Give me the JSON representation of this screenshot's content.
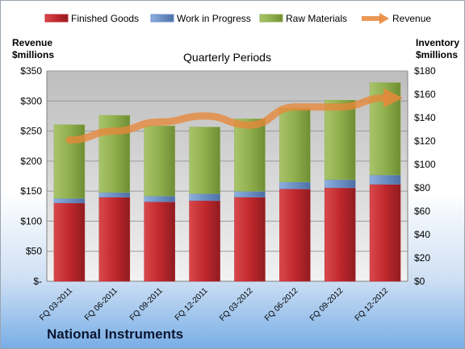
{
  "company": "National Instruments",
  "chart_data": {
    "type": "bar",
    "stacked": true,
    "title": "Quarterly Periods",
    "ylabel_left": "Revenue\n$millions",
    "ylabel_right": "Inventory\n$millions",
    "categories": [
      "FQ 03-2011",
      "FQ 06-2011",
      "FQ 09-2011",
      "FQ 12-2011",
      "FQ 03-2012",
      "FQ 06-2012",
      "FQ 09-2012",
      "FQ 12-2012"
    ],
    "left_axis": {
      "ylim": [
        0,
        350
      ],
      "ticks": [
        "$-",
        "$50",
        "$100",
        "$150",
        "$200",
        "$250",
        "$300",
        "$350"
      ]
    },
    "right_axis": {
      "ylim": [
        0,
        180
      ],
      "ticks": [
        "$0",
        "$20",
        "$40",
        "$60",
        "$80",
        "$100",
        "$120",
        "$140",
        "$160",
        "$180"
      ]
    },
    "grid": true,
    "legend_position": "top",
    "series": [
      {
        "name": "Finished Goods",
        "axis": "right",
        "kind": "bar",
        "color": "#c0282d",
        "values": [
          67,
          72,
          68,
          69,
          72,
          79,
          80,
          83
        ]
      },
      {
        "name": "Work in Progress",
        "axis": "right",
        "kind": "bar",
        "color": "#6c8fc4",
        "values": [
          4,
          4,
          5,
          6,
          5,
          6,
          7,
          8
        ]
      },
      {
        "name": "Raw Materials",
        "axis": "right",
        "kind": "bar",
        "color": "#92b050",
        "values": [
          63,
          66,
          60,
          57,
          62,
          63,
          68,
          79
        ]
      },
      {
        "name": "Revenue",
        "axis": "left",
        "kind": "line",
        "color": "#e8883a",
        "values": [
          235,
          250,
          265,
          275,
          260,
          290,
          290,
          305
        ]
      }
    ]
  }
}
